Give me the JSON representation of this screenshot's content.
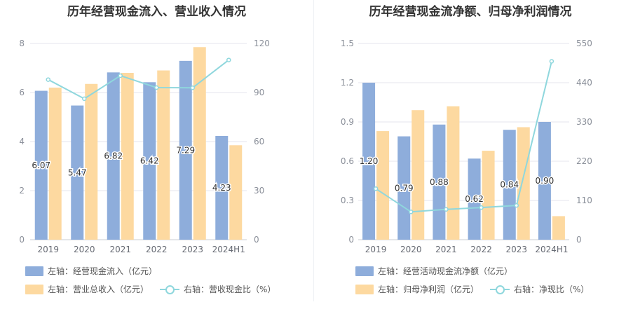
{
  "chart_data": [
    {
      "type": "bar",
      "title": "历年经营现金流入、营业收入情况",
      "categories": [
        "2019",
        "2020",
        "2021",
        "2022",
        "2023",
        "2024H1"
      ],
      "left_axis": {
        "ylim": [
          0,
          8
        ],
        "ticks": [
          "0",
          "2",
          "4",
          "6",
          "8"
        ]
      },
      "right_axis": {
        "ylim": [
          0,
          120
        ],
        "ticks": [
          "0",
          "30",
          "60",
          "90",
          "120"
        ]
      },
      "series": [
        {
          "name": "左轴：经营现金流入（亿元）",
          "axis": "left",
          "kind": "bar",
          "color": "#8eaddb",
          "values": [
            6.07,
            5.47,
            6.82,
            6.42,
            7.29,
            4.23
          ],
          "labels": [
            "6.07",
            "5.47",
            "6.82",
            "6.42",
            "7.29",
            "4.23"
          ]
        },
        {
          "name": "左轴：营业总收入（亿元）",
          "axis": "left",
          "kind": "bar",
          "color": "#fdd9a0",
          "values": [
            6.2,
            6.35,
            6.8,
            6.9,
            7.85,
            3.85
          ]
        },
        {
          "name": "右轴：营收现金比（%）",
          "axis": "right",
          "kind": "line",
          "color": "#8fd7dd",
          "values": [
            97.9,
            86.2,
            100.3,
            93.0,
            92.9,
            109.9
          ]
        }
      ],
      "legend": "bottom",
      "grid": true
    },
    {
      "type": "bar",
      "title": "历年经营现金流净额、归母净利润情况",
      "categories": [
        "2019",
        "2020",
        "2021",
        "2022",
        "2023",
        "2024H1"
      ],
      "left_axis": {
        "ylim": [
          0,
          1.5
        ],
        "ticks": [
          "0",
          "0.3",
          "0.6",
          "0.9",
          "1.2",
          "1.5"
        ]
      },
      "right_axis": {
        "ylim": [
          0,
          550
        ],
        "ticks": [
          "0",
          "110",
          "220",
          "330",
          "440",
          "550"
        ]
      },
      "series": [
        {
          "name": "左轴：经营活动现金流净额（亿元）",
          "axis": "left",
          "kind": "bar",
          "color": "#8eaddb",
          "values": [
            1.2,
            0.79,
            0.88,
            0.62,
            0.84,
            0.9
          ],
          "labels": [
            "1.20",
            "0.79",
            "0.88",
            "0.62",
            "0.84",
            "0.90"
          ]
        },
        {
          "name": "左轴：归母净利润（亿元）",
          "axis": "left",
          "kind": "bar",
          "color": "#fdd9a0",
          "values": [
            0.83,
            0.99,
            1.02,
            0.68,
            0.86,
            0.18
          ]
        },
        {
          "name": "右轴：净现比（%）",
          "axis": "right",
          "kind": "line",
          "color": "#8fd7dd",
          "values": [
            143,
            78,
            85,
            90,
            96,
            500
          ]
        }
      ],
      "legend": "bottom",
      "grid": true
    }
  ]
}
